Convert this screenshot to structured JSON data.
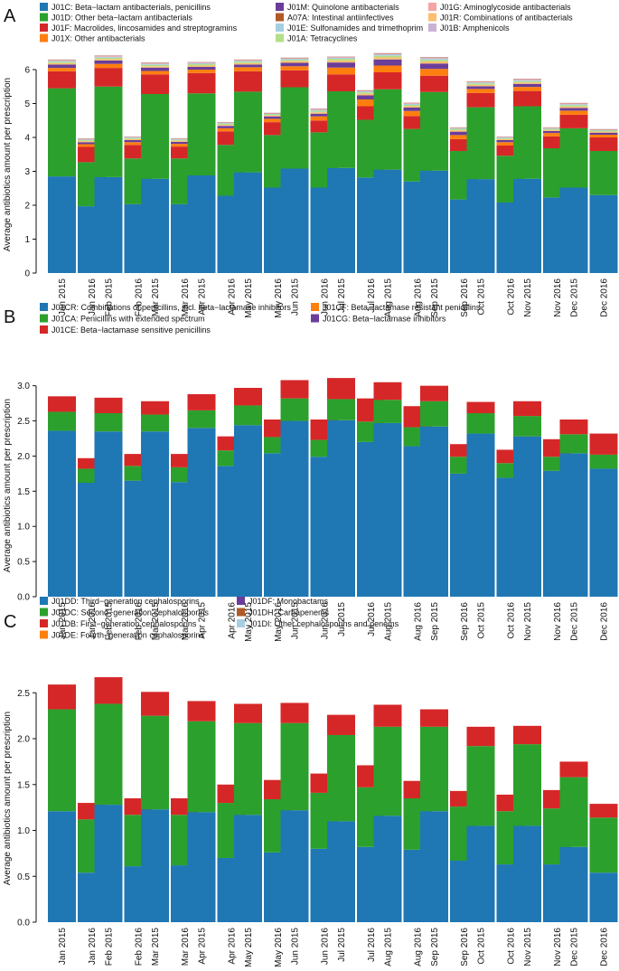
{
  "figure": {
    "months": [
      "Jan",
      "Feb",
      "Mar",
      "Apr",
      "May",
      "Jun",
      "Jul",
      "Aug",
      "Sep",
      "Oct",
      "Nov",
      "Dec"
    ],
    "years": [
      "2015",
      "2016"
    ]
  },
  "colors": {
    "blue": "#1f77b4",
    "green": "#2ca02c",
    "red": "#d62728",
    "orange": "#ff7f0e",
    "purple": "#6a3d9a",
    "brown": "#b15928",
    "lightblue": "#a6cee3",
    "pink": "#f4a4a4",
    "lightorange": "#fdbf6f",
    "lavender": "#cab2d6",
    "lightgreen": "#b2df8a"
  },
  "chart_data": [
    {
      "panel_label": "A",
      "type": "bar",
      "stacked": true,
      "ylabel": "Average antibiotics amount per prescription",
      "ylim": [
        0,
        6.4
      ],
      "yticks": [
        0,
        1,
        2,
        3,
        4,
        5,
        6
      ],
      "ytick_labels": [
        "0",
        "1",
        "2",
        "3",
        "4",
        "5",
        "6"
      ],
      "categories": [
        "Jan 2015",
        "Jan 2016",
        "Feb 2015",
        "Feb 2016",
        "Mar 2015",
        "Mar 2016",
        "Apr 2015",
        "Apr 2016",
        "May 2015",
        "May 2016",
        "Jun 2015",
        "Jun 2016",
        "Jul 2015",
        "Jul 2016",
        "Aug 2015",
        "Aug 2016",
        "Sep 2015",
        "Sep 2016",
        "Oct 2015",
        "Oct 2016",
        "Nov 2015",
        "Nov 2016",
        "Dec 2015",
        "Dec 2016"
      ],
      "legend_columns": 3,
      "legend": [
        {
          "name": "J01C: Beta−lactam antibacterials, penicillins",
          "color": "#1f77b4"
        },
        {
          "name": "J01M: Quinolone antibacterials",
          "color": "#6a3d9a"
        },
        {
          "name": "J01G: Aminoglycoside antibacterials",
          "color": "#f4a4a4"
        },
        {
          "name": "J01D: Other beta−lactam antibacterials",
          "color": "#2ca02c"
        },
        {
          "name": "A07A: Intestinal antiinfectives",
          "color": "#b15928"
        },
        {
          "name": "J01R: Combinations of antibacterials",
          "color": "#fdbf6f"
        },
        {
          "name": "J01F: Macrolides, lincosamides and streptogramins",
          "color": "#d62728"
        },
        {
          "name": "J01E: Sulfonamides and trimethoprim",
          "color": "#a6cee3"
        },
        {
          "name": "J01B: Amphenicols",
          "color": "#cab2d6"
        },
        {
          "name": "J01X: Other antibacterials",
          "color": "#ff7f0e"
        },
        {
          "name": "J01A: Tetracyclines",
          "color": "#b2df8a"
        }
      ],
      "series": [
        {
          "name": "J01C: Beta−lactam antibacterials, penicillins",
          "color": "#1f77b4",
          "values": [
            2.85,
            1.97,
            2.83,
            2.03,
            2.78,
            2.03,
            2.88,
            2.28,
            2.97,
            2.52,
            3.08,
            2.52,
            3.1,
            2.82,
            3.05,
            2.7,
            3.02,
            2.17,
            2.77,
            2.08,
            2.78,
            2.23,
            2.52,
            2.3
          ]
        },
        {
          "name": "J01D: Other beta−lactam antibacterials",
          "color": "#2ca02c",
          "values": [
            2.6,
            1.3,
            2.67,
            1.35,
            2.5,
            1.35,
            2.42,
            1.5,
            2.38,
            1.55,
            2.4,
            1.63,
            2.26,
            1.7,
            2.37,
            1.55,
            2.32,
            1.43,
            2.12,
            1.38,
            2.14,
            1.45,
            1.75,
            1.3
          ]
        },
        {
          "name": "J01F: Macrolides, lincosamides and streptogramins",
          "color": "#d62728",
          "values": [
            0.5,
            0.45,
            0.55,
            0.4,
            0.58,
            0.35,
            0.6,
            0.4,
            0.6,
            0.38,
            0.5,
            0.35,
            0.5,
            0.4,
            0.5,
            0.38,
            0.48,
            0.35,
            0.42,
            0.3,
            0.45,
            0.35,
            0.4,
            0.4
          ]
        },
        {
          "name": "J01X: Other antibacterials",
          "color": "#ff7f0e",
          "values": [
            0.1,
            0.08,
            0.12,
            0.08,
            0.1,
            0.08,
            0.1,
            0.09,
            0.12,
            0.1,
            0.12,
            0.12,
            0.2,
            0.2,
            0.2,
            0.15,
            0.2,
            0.12,
            0.12,
            0.1,
            0.12,
            0.1,
            0.12,
            0.08
          ]
        },
        {
          "name": "J01M: Quinolone antibacterials",
          "color": "#6a3d9a",
          "values": [
            0.1,
            0.06,
            0.1,
            0.06,
            0.1,
            0.06,
            0.08,
            0.07,
            0.08,
            0.07,
            0.1,
            0.08,
            0.15,
            0.12,
            0.18,
            0.1,
            0.16,
            0.1,
            0.08,
            0.06,
            0.09,
            0.06,
            0.08,
            0.06
          ]
        },
        {
          "name": "J01R: Combinations of antibacterials",
          "color": "#fdbf6f",
          "values": [
            0.04,
            0.03,
            0.04,
            0.03,
            0.04,
            0.03,
            0.04,
            0.03,
            0.04,
            0.03,
            0.05,
            0.04,
            0.06,
            0.05,
            0.06,
            0.04,
            0.06,
            0.04,
            0.04,
            0.03,
            0.04,
            0.03,
            0.04,
            0.03
          ]
        },
        {
          "name": "J01A: Tetracyclines",
          "color": "#b2df8a",
          "values": [
            0.04,
            0.03,
            0.04,
            0.03,
            0.04,
            0.03,
            0.04,
            0.03,
            0.04,
            0.03,
            0.04,
            0.04,
            0.05,
            0.04,
            0.05,
            0.04,
            0.05,
            0.04,
            0.04,
            0.03,
            0.04,
            0.03,
            0.04,
            0.03
          ]
        },
        {
          "name": "J01E: Sulfonamides and trimethoprim",
          "color": "#a6cee3",
          "values": [
            0.03,
            0.02,
            0.03,
            0.02,
            0.03,
            0.02,
            0.03,
            0.02,
            0.03,
            0.02,
            0.03,
            0.03,
            0.03,
            0.03,
            0.04,
            0.03,
            0.04,
            0.02,
            0.03,
            0.02,
            0.03,
            0.02,
            0.03,
            0.02
          ]
        },
        {
          "name": "J01G: Aminoglycoside antibacterials",
          "color": "#f4a4a4",
          "values": [
            0.02,
            0.01,
            0.02,
            0.01,
            0.02,
            0.01,
            0.02,
            0.01,
            0.02,
            0.01,
            0.02,
            0.02,
            0.02,
            0.02,
            0.02,
            0.02,
            0.02,
            0.01,
            0.02,
            0.01,
            0.02,
            0.01,
            0.02,
            0.01
          ]
        },
        {
          "name": "A07A: Intestinal antiinfectives",
          "color": "#b15928",
          "values": [
            0.01,
            0.01,
            0.01,
            0.01,
            0.01,
            0.01,
            0.01,
            0.01,
            0.01,
            0.01,
            0.01,
            0.01,
            0.01,
            0.01,
            0.01,
            0.01,
            0.01,
            0.01,
            0.01,
            0.01,
            0.01,
            0.01,
            0.01,
            0.01
          ]
        },
        {
          "name": "J01B: Amphenicols",
          "color": "#cab2d6",
          "values": [
            0.01,
            0.01,
            0.01,
            0.01,
            0.01,
            0.01,
            0.01,
            0.01,
            0.01,
            0.01,
            0.01,
            0.01,
            0.01,
            0.01,
            0.01,
            0.01,
            0.01,
            0.01,
            0.01,
            0.01,
            0.01,
            0.01,
            0.01,
            0.01
          ]
        }
      ]
    },
    {
      "panel_label": "B",
      "type": "bar",
      "stacked": true,
      "ylabel": "Average antibiotics amount per prescription",
      "ylim": [
        0,
        3.15
      ],
      "yticks": [
        0,
        0.5,
        1,
        1.5,
        2,
        2.5,
        3
      ],
      "ytick_labels": [
        "0.0",
        "0.5",
        "1.0",
        "1.5",
        "2.0",
        "2.5",
        "3.0"
      ],
      "categories": [
        "Jan 2015",
        "Jan 2016",
        "Feb 2015",
        "Feb 2016",
        "Mar 2015",
        "Mar 2016",
        "Apr 2015",
        "Apr 2016",
        "May 2015",
        "May 2016",
        "Jun 2015",
        "Jun 2016",
        "Jul 2015",
        "Jul 2016",
        "Aug 2015",
        "Aug 2016",
        "Sep 2015",
        "Sep 2016",
        "Oct 2015",
        "Oct 2016",
        "Nov 2015",
        "Nov 2016",
        "Dec 2015",
        "Dec 2016"
      ],
      "legend_columns": 2,
      "legend": [
        {
          "name": "J01CR: Combinations of penicillins, incl. beta−lactamase inhibitors",
          "color": "#1f77b4"
        },
        {
          "name": "J01CF: Beta−lactamase resistant penicillins",
          "color": "#ff7f0e"
        },
        {
          "name": "J01CA: Penicillins with extended spectrum",
          "color": "#2ca02c"
        },
        {
          "name": "J01CG: Beta−lactamase inhibitors",
          "color": "#6a3d9a"
        },
        {
          "name": "J01CE: Beta−lactamase sensitive penicillins",
          "color": "#d62728"
        }
      ],
      "series": [
        {
          "name": "J01CR: Combinations of penicillins, incl. beta−lactamase inhibitors",
          "color": "#1f77b4",
          "values": [
            2.36,
            1.62,
            2.35,
            1.65,
            2.35,
            1.63,
            2.4,
            1.86,
            2.44,
            2.04,
            2.5,
            1.99,
            2.51,
            2.2,
            2.47,
            2.14,
            2.42,
            1.75,
            2.32,
            1.69,
            2.28,
            1.79,
            2.04,
            1.82
          ]
        },
        {
          "name": "J01CA: Penicillins with extended spectrum",
          "color": "#2ca02c",
          "values": [
            0.27,
            0.2,
            0.26,
            0.21,
            0.24,
            0.21,
            0.25,
            0.22,
            0.28,
            0.23,
            0.32,
            0.24,
            0.3,
            0.29,
            0.33,
            0.27,
            0.36,
            0.24,
            0.29,
            0.21,
            0.29,
            0.2,
            0.27,
            0.2
          ]
        },
        {
          "name": "J01CE: Beta−lactamase sensitive penicillins",
          "color": "#d62728",
          "values": [
            0.22,
            0.15,
            0.22,
            0.17,
            0.19,
            0.19,
            0.23,
            0.2,
            0.25,
            0.25,
            0.26,
            0.29,
            0.3,
            0.33,
            0.25,
            0.3,
            0.22,
            0.18,
            0.16,
            0.19,
            0.21,
            0.25,
            0.21,
            0.3
          ]
        },
        {
          "name": "J01CF: Beta−lactamase resistant penicillins",
          "color": "#ff7f0e",
          "values": [
            0,
            0,
            0,
            0,
            0,
            0,
            0,
            0,
            0,
            0,
            0,
            0,
            0,
            0,
            0,
            0,
            0,
            0,
            0,
            0,
            0,
            0,
            0,
            0
          ]
        },
        {
          "name": "J01CG: Beta−lactamase inhibitors",
          "color": "#6a3d9a",
          "values": [
            0,
            0,
            0,
            0,
            0,
            0,
            0,
            0,
            0,
            0,
            0,
            0,
            0,
            0,
            0,
            0,
            0,
            0,
            0,
            0,
            0,
            0,
            0,
            0
          ]
        }
      ]
    },
    {
      "panel_label": "C",
      "type": "bar",
      "stacked": true,
      "ylabel": "Average antibiotics amount per prescription",
      "ylim": [
        0,
        2.7
      ],
      "yticks": [
        0,
        0.5,
        1,
        1.5,
        2,
        2.5
      ],
      "ytick_labels": [
        "0.0",
        "0.5",
        "1.0",
        "1.5",
        "2.0",
        "2.5"
      ],
      "categories": [
        "Jan 2015",
        "Jan 2016",
        "Feb 2015",
        "Feb 2016",
        "Mar 2015",
        "Mar 2016",
        "Apr 2015",
        "Apr 2016",
        "May 2015",
        "May 2016",
        "Jun 2015",
        "Jun 2016",
        "Jul 2015",
        "Jul 2016",
        "Aug 2015",
        "Aug 2016",
        "Sep 2015",
        "Sep 2016",
        "Oct 2015",
        "Oct 2016",
        "Nov 2015",
        "Nov 2016",
        "Dec 2015",
        "Dec 2016"
      ],
      "legend_columns": 2,
      "legend": [
        {
          "name": "J01DD: Third−generation cephalosporins",
          "color": "#1f77b4"
        },
        {
          "name": "J01DF: Monobactams",
          "color": "#6a3d9a"
        },
        {
          "name": "J01DC: Second−generation cephalosporins",
          "color": "#2ca02c"
        },
        {
          "name": "J01DH: Carbapenems",
          "color": "#b15928"
        },
        {
          "name": "J01DB: First−generation cephalosporins",
          "color": "#d62728"
        },
        {
          "name": "J01DI: Other cephalosporins and penems",
          "color": "#a6cee3"
        },
        {
          "name": "J01DE: Fourth−generation cephalosporins",
          "color": "#ff7f0e"
        }
      ],
      "series": [
        {
          "name": "J01DD: Third−generation cephalosporins",
          "color": "#1f77b4",
          "values": [
            1.21,
            0.54,
            1.28,
            0.61,
            1.23,
            0.62,
            1.2,
            0.7,
            1.17,
            0.76,
            1.22,
            0.8,
            1.1,
            0.82,
            1.16,
            0.79,
            1.21,
            0.67,
            1.05,
            0.63,
            1.05,
            0.63,
            0.82,
            0.54
          ]
        },
        {
          "name": "J01DC: Second−generation cephalosporins",
          "color": "#2ca02c",
          "values": [
            1.11,
            0.58,
            1.1,
            0.56,
            1.02,
            0.55,
            0.99,
            0.6,
            1.0,
            0.58,
            0.95,
            0.61,
            0.94,
            0.65,
            0.97,
            0.56,
            0.92,
            0.59,
            0.87,
            0.58,
            0.89,
            0.61,
            0.76,
            0.6
          ]
        },
        {
          "name": "J01DB: First−generation cephalosporins",
          "color": "#d62728",
          "values": [
            0.27,
            0.18,
            0.29,
            0.18,
            0.26,
            0.18,
            0.22,
            0.2,
            0.21,
            0.21,
            0.22,
            0.21,
            0.22,
            0.24,
            0.24,
            0.19,
            0.19,
            0.17,
            0.21,
            0.18,
            0.2,
            0.2,
            0.17,
            0.15
          ]
        },
        {
          "name": "J01DE: Fourth−generation cephalosporins",
          "color": "#ff7f0e",
          "values": [
            0,
            0,
            0,
            0,
            0,
            0,
            0,
            0,
            0,
            0,
            0,
            0,
            0,
            0,
            0,
            0,
            0,
            0,
            0,
            0,
            0,
            0,
            0,
            0
          ]
        },
        {
          "name": "J01DF: Monobactams",
          "color": "#6a3d9a",
          "values": [
            0,
            0,
            0,
            0,
            0,
            0,
            0,
            0,
            0,
            0,
            0,
            0,
            0,
            0,
            0,
            0,
            0,
            0,
            0,
            0,
            0,
            0,
            0,
            0
          ]
        },
        {
          "name": "J01DH: Carbapenems",
          "color": "#b15928",
          "values": [
            0,
            0,
            0,
            0,
            0,
            0,
            0,
            0,
            0,
            0,
            0,
            0,
            0,
            0,
            0,
            0,
            0,
            0,
            0,
            0,
            0,
            0,
            0,
            0
          ]
        },
        {
          "name": "J01DI: Other cephalosporins and penems",
          "color": "#a6cee3",
          "values": [
            0,
            0,
            0,
            0,
            0,
            0,
            0,
            0,
            0,
            0,
            0,
            0,
            0,
            0,
            0,
            0,
            0,
            0,
            0,
            0,
            0,
            0,
            0,
            0
          ]
        }
      ]
    }
  ]
}
